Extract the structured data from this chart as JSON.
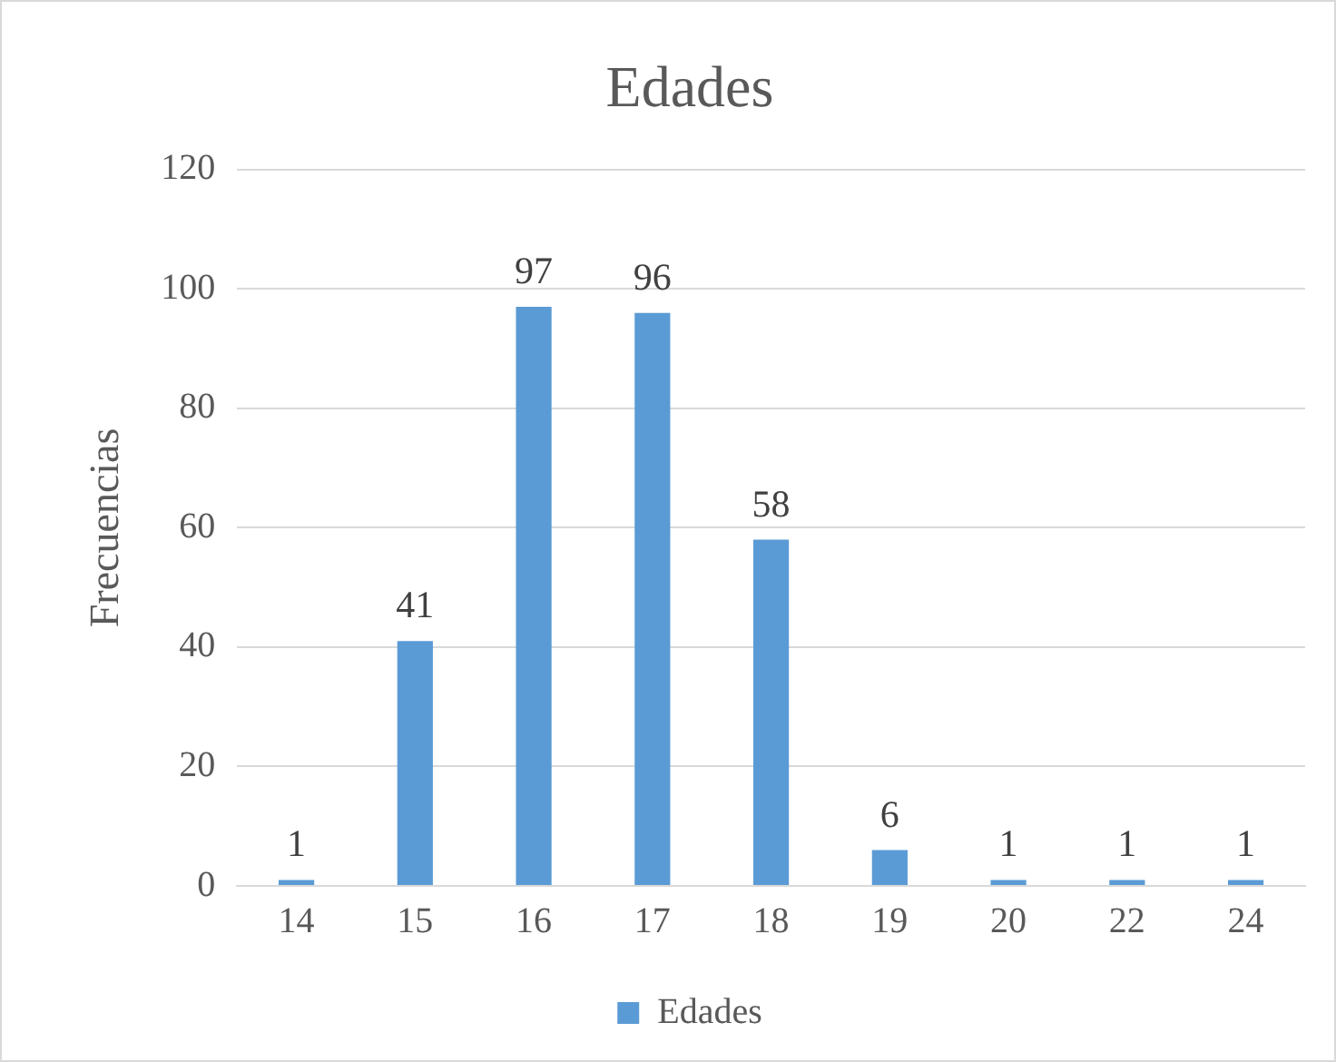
{
  "chart_data": {
    "type": "bar",
    "title": "Edades",
    "ylabel": "Frecuencias",
    "categories": [
      "14",
      "15",
      "16",
      "17",
      "18",
      "19",
      "20",
      "22",
      "24"
    ],
    "series": [
      {
        "name": "Edades",
        "color": "#5b9bd5",
        "values": [
          1,
          41,
          97,
          96,
          58,
          6,
          1,
          1,
          1
        ]
      }
    ],
    "ylim": [
      0,
      120
    ],
    "yticks": [
      0,
      20,
      40,
      60,
      80,
      100,
      120
    ],
    "grid": "y",
    "legend": "bottom",
    "data_labels": true
  }
}
